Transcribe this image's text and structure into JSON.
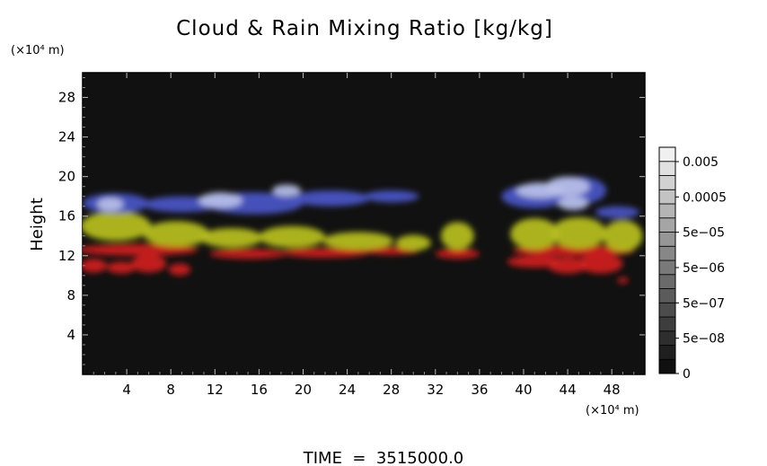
{
  "chart_data": {
    "type": "heatmap",
    "title": "Cloud & Rain Mixing Ratio [kg/kg]",
    "ylabel": "Height",
    "y_unit": "(×10⁴ m)",
    "x_unit": "(×10⁴ m)",
    "xlim": [
      0,
      51
    ],
    "ylim": [
      0,
      30.5
    ],
    "x_ticks": [
      4,
      8,
      12,
      16,
      20,
      24,
      28,
      32,
      36,
      40,
      44,
      48
    ],
    "y_ticks": [
      4,
      8,
      12,
      16,
      20,
      24,
      28
    ],
    "footer": "TIME  =  3515000.0",
    "colorbar": {
      "labels": [
        "0.005",
        "0.0005",
        "5e−05",
        "5e−06",
        "5e−07",
        "5e−08",
        "0"
      ],
      "levels": 16,
      "scale": "log",
      "colors": {
        "dark": "#101010",
        "light": "#f0f0f0"
      }
    },
    "background_color": "#111111",
    "layers": [
      {
        "color": "#d02020",
        "blobs": [
          {
            "x": 1,
            "y": 11,
            "rx": 1.2,
            "ry": 0.7
          },
          {
            "x": 3.5,
            "y": 10.8,
            "rx": 1.3,
            "ry": 0.6
          },
          {
            "x": 6,
            "y": 11.2,
            "rx": 1.6,
            "ry": 0.9
          },
          {
            "x": 8.8,
            "y": 10.6,
            "rx": 1.0,
            "ry": 0.6
          },
          {
            "x": 5,
            "y": 12.6,
            "rx": 5.5,
            "ry": 0.6
          },
          {
            "x": 15,
            "y": 12.2,
            "rx": 3.5,
            "ry": 0.5
          },
          {
            "x": 22,
            "y": 12.3,
            "rx": 4.0,
            "ry": 0.5
          },
          {
            "x": 28,
            "y": 12.5,
            "rx": 2.5,
            "ry": 0.4
          },
          {
            "x": 34,
            "y": 12.2,
            "rx": 2.0,
            "ry": 0.5
          },
          {
            "x": 41,
            "y": 11.4,
            "rx": 2.5,
            "ry": 0.6
          },
          {
            "x": 44,
            "y": 11.0,
            "rx": 1.8,
            "ry": 0.8
          },
          {
            "x": 47,
            "y": 11.2,
            "rx": 2.0,
            "ry": 1.0
          },
          {
            "x": 44.5,
            "y": 12.5,
            "rx": 5.5,
            "ry": 0.6
          },
          {
            "x": 49,
            "y": 9.5,
            "rx": 0.5,
            "ry": 0.3
          }
        ]
      },
      {
        "color": "#b8c020",
        "blobs": [
          {
            "x": 3,
            "y": 15.0,
            "rx": 3.2,
            "ry": 1.5
          },
          {
            "x": 8.5,
            "y": 14.2,
            "rx": 3.0,
            "ry": 1.3
          },
          {
            "x": 13.5,
            "y": 13.8,
            "rx": 2.8,
            "ry": 1.0
          },
          {
            "x": 19,
            "y": 13.9,
            "rx": 3.0,
            "ry": 1.1
          },
          {
            "x": 25,
            "y": 13.5,
            "rx": 3.2,
            "ry": 0.9
          },
          {
            "x": 30,
            "y": 13.3,
            "rx": 1.6,
            "ry": 0.8
          },
          {
            "x": 34,
            "y": 14.0,
            "rx": 1.5,
            "ry": 1.4
          },
          {
            "x": 41,
            "y": 14.2,
            "rx": 2.2,
            "ry": 1.6
          },
          {
            "x": 45,
            "y": 14.3,
            "rx": 2.5,
            "ry": 1.6
          },
          {
            "x": 49,
            "y": 14.0,
            "rx": 1.8,
            "ry": 1.6
          }
        ]
      },
      {
        "color": "#4a56c8",
        "blobs": [
          {
            "x": 3,
            "y": 17.3,
            "rx": 3.0,
            "ry": 1.0
          },
          {
            "x": 9,
            "y": 17.2,
            "rx": 3.5,
            "ry": 0.8
          },
          {
            "x": 15.5,
            "y": 17.3,
            "rx": 4.5,
            "ry": 1.1
          },
          {
            "x": 22.5,
            "y": 17.8,
            "rx": 3.5,
            "ry": 0.8
          },
          {
            "x": 28,
            "y": 18.0,
            "rx": 2.5,
            "ry": 0.6
          },
          {
            "x": 41,
            "y": 18.0,
            "rx": 3.0,
            "ry": 1.2
          },
          {
            "x": 45,
            "y": 18.6,
            "rx": 2.5,
            "ry": 1.4
          },
          {
            "x": 48.5,
            "y": 16.4,
            "rx": 2.0,
            "ry": 0.6
          }
        ]
      },
      {
        "color": "#b8c0e8",
        "blobs": [
          {
            "x": 2.5,
            "y": 17.2,
            "rx": 1.2,
            "ry": 0.7
          },
          {
            "x": 12.5,
            "y": 17.6,
            "rx": 2.0,
            "ry": 0.8
          },
          {
            "x": 18.5,
            "y": 18.6,
            "rx": 1.3,
            "ry": 0.6
          },
          {
            "x": 41.5,
            "y": 18.6,
            "rx": 2.2,
            "ry": 0.8
          },
          {
            "x": 44,
            "y": 19.0,
            "rx": 2.0,
            "ry": 1.0
          },
          {
            "x": 44.5,
            "y": 17.3,
            "rx": 1.4,
            "ry": 0.7
          }
        ]
      }
    ]
  }
}
